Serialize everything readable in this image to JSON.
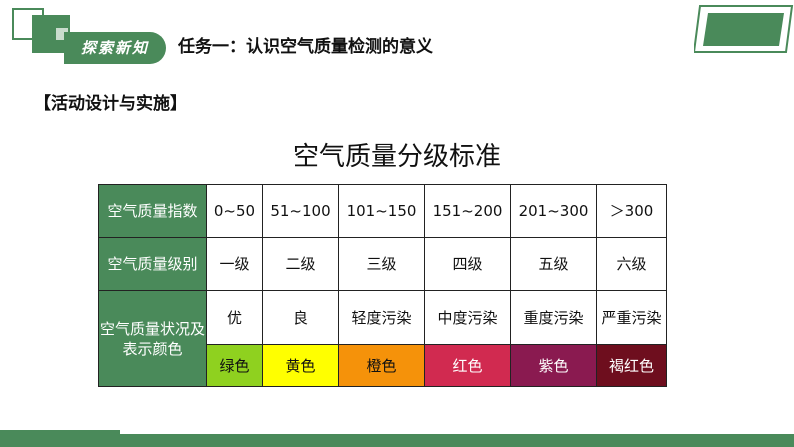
{
  "header": {
    "badge_label": "探索新知",
    "task_title": "任务一：认识空气质量检测的意义"
  },
  "activity_label": "【活动设计与实施】",
  "table": {
    "title": "空气质量分级标准",
    "row_headers": [
      "空气质量指数",
      "空气质量级别",
      "空气质量状况及表示颜色"
    ],
    "index_ranges": [
      "0~50",
      "51~100",
      "101~150",
      "151~200",
      "201~300",
      "＞300"
    ],
    "levels": [
      "一级",
      "二级",
      "三级",
      "四级",
      "五级",
      "六级"
    ],
    "conditions": [
      "优",
      "良",
      "轻度污染",
      "中度污染",
      "重度污染",
      "严重污染"
    ],
    "color_names": [
      "绿色",
      "黄色",
      "橙色",
      "红色",
      "紫色",
      "褐红色"
    ],
    "color_values": [
      "#8fd11f",
      "#ffff00",
      "#f5920a",
      "#d12a50",
      "#8a1a50",
      "#6e0e1e"
    ],
    "color_text": [
      "#111111",
      "#111111",
      "#111111",
      "#ffffff",
      "#ffffff",
      "#ffffff"
    ]
  },
  "theme": {
    "accent": "#4a8a5a"
  }
}
